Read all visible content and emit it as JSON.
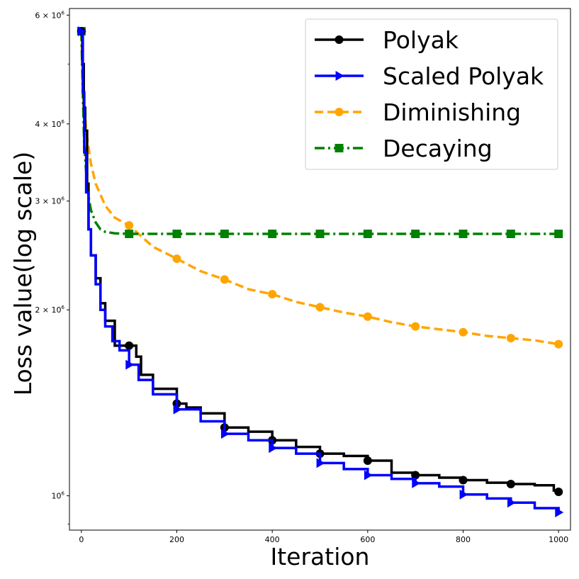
{
  "chart_data": {
    "type": "line",
    "title": "",
    "xlabel": "Iteration",
    "ylabel": "Loss value(log scale)",
    "yscale": "log",
    "xlim": [
      -25,
      1025
    ],
    "ylim": [
      880000,
      6150000
    ],
    "xticks": [
      0,
      200,
      400,
      600,
      800,
      1000
    ],
    "xtick_labels": [
      "0",
      "200",
      "400",
      "600",
      "800",
      "1000"
    ],
    "yticks": [
      {
        "value": 1000000,
        "mantissa": "10",
        "exponent": "6"
      },
      {
        "value": 2000000,
        "mantissa": "2 × 10",
        "exponent": "6"
      },
      {
        "value": 3000000,
        "mantissa": "3 × 10",
        "exponent": "6"
      },
      {
        "value": 4000000,
        "mantissa": "4 × 10",
        "exponent": "6"
      },
      {
        "value": 6000000,
        "mantissa": "6 × 10",
        "exponent": "6"
      }
    ],
    "minor_yticks": [
      900000,
      5000000
    ],
    "legend_position": "upper right",
    "series": [
      {
        "name": "Polyak",
        "color": "#000000",
        "linestyle": "solid",
        "marker": "circle",
        "step": true,
        "x": [
          0,
          2,
          5,
          8,
          12,
          15,
          20,
          30,
          40,
          50,
          70,
          100,
          115,
          125,
          150,
          200,
          220,
          250,
          300,
          350,
          400,
          450,
          500,
          550,
          600,
          650,
          700,
          750,
          800,
          850,
          900,
          950,
          990,
          1000
        ],
        "y": [
          5650000,
          5000000,
          4250000,
          3900000,
          3200000,
          2700000,
          2450000,
          2250000,
          2050000,
          1920000,
          1750000,
          1750000,
          1680000,
          1570000,
          1490000,
          1410000,
          1390000,
          1360000,
          1290000,
          1270000,
          1230000,
          1200000,
          1170000,
          1160000,
          1140000,
          1090000,
          1080000,
          1070000,
          1060000,
          1050000,
          1045000,
          1040000,
          1020000,
          1015000
        ],
        "markers_x": [
          0,
          100,
          200,
          300,
          400,
          500,
          600,
          700,
          800,
          900,
          1000
        ],
        "markers_y": [
          5650000,
          1750000,
          1410000,
          1290000,
          1230000,
          1170000,
          1140000,
          1080000,
          1060000,
          1045000,
          1015000
        ]
      },
      {
        "name": "Scaled Polyak",
        "color": "#0000ff",
        "linestyle": "solid",
        "marker": "triangle-right",
        "step": true,
        "x": [
          0,
          3,
          6,
          10,
          15,
          20,
          30,
          40,
          50,
          65,
          80,
          100,
          120,
          150,
          200,
          250,
          300,
          350,
          400,
          450,
          500,
          550,
          600,
          650,
          700,
          750,
          800,
          850,
          900,
          950,
          1000
        ],
        "y": [
          5650000,
          4500000,
          3600000,
          3100000,
          2700000,
          2450000,
          2200000,
          2000000,
          1880000,
          1780000,
          1720000,
          1630000,
          1540000,
          1460000,
          1380000,
          1320000,
          1260000,
          1230000,
          1195000,
          1170000,
          1130000,
          1105000,
          1080000,
          1065000,
          1048000,
          1035000,
          1005000,
          990000,
          975000,
          955000,
          940000
        ],
        "markers_x": [
          0,
          100,
          200,
          300,
          400,
          500,
          600,
          700,
          800,
          900,
          1000
        ],
        "markers_y": [
          5650000,
          1630000,
          1380000,
          1260000,
          1195000,
          1130000,
          1080000,
          1048000,
          1005000,
          975000,
          940000
        ]
      },
      {
        "name": "Diminishing",
        "color": "#ffa500",
        "linestyle": "dashed",
        "marker": "circle",
        "step": false,
        "x": [
          0,
          5,
          10,
          20,
          30,
          50,
          70,
          100,
          150,
          200,
          250,
          300,
          350,
          400,
          450,
          500,
          550,
          600,
          650,
          700,
          750,
          800,
          850,
          900,
          950,
          1000
        ],
        "y": [
          5650000,
          4450000,
          3900000,
          3450000,
          3200000,
          2950000,
          2820000,
          2740000,
          2530000,
          2420000,
          2310000,
          2240000,
          2160000,
          2120000,
          2060000,
          2020000,
          1980000,
          1950000,
          1910000,
          1880000,
          1860000,
          1840000,
          1815000,
          1800000,
          1785000,
          1760000
        ],
        "markers_x": [
          0,
          100,
          200,
          300,
          400,
          500,
          600,
          700,
          800,
          900,
          1000
        ],
        "markers_y": [
          5650000,
          2740000,
          2420000,
          2240000,
          2120000,
          2020000,
          1950000,
          1880000,
          1840000,
          1800000,
          1760000
        ]
      },
      {
        "name": "Decaying",
        "color": "#008000",
        "linestyle": "dashdot",
        "marker": "square",
        "step": false,
        "x": [
          0,
          3,
          6,
          10,
          15,
          20,
          30,
          40,
          50,
          70,
          100,
          200,
          300,
          400,
          500,
          600,
          700,
          800,
          900,
          1000
        ],
        "y": [
          5650000,
          4500000,
          3700000,
          3350000,
          3050000,
          2900000,
          2770000,
          2700000,
          2675000,
          2660000,
          2655000,
          2655000,
          2655000,
          2655000,
          2655000,
          2655000,
          2655000,
          2655000,
          2655000,
          2655000
        ],
        "markers_x": [
          0,
          100,
          200,
          300,
          400,
          500,
          600,
          700,
          800,
          900,
          1000
        ],
        "markers_y": [
          5650000,
          2655000,
          2655000,
          2655000,
          2655000,
          2655000,
          2655000,
          2655000,
          2655000,
          2655000,
          2655000
        ]
      }
    ]
  }
}
